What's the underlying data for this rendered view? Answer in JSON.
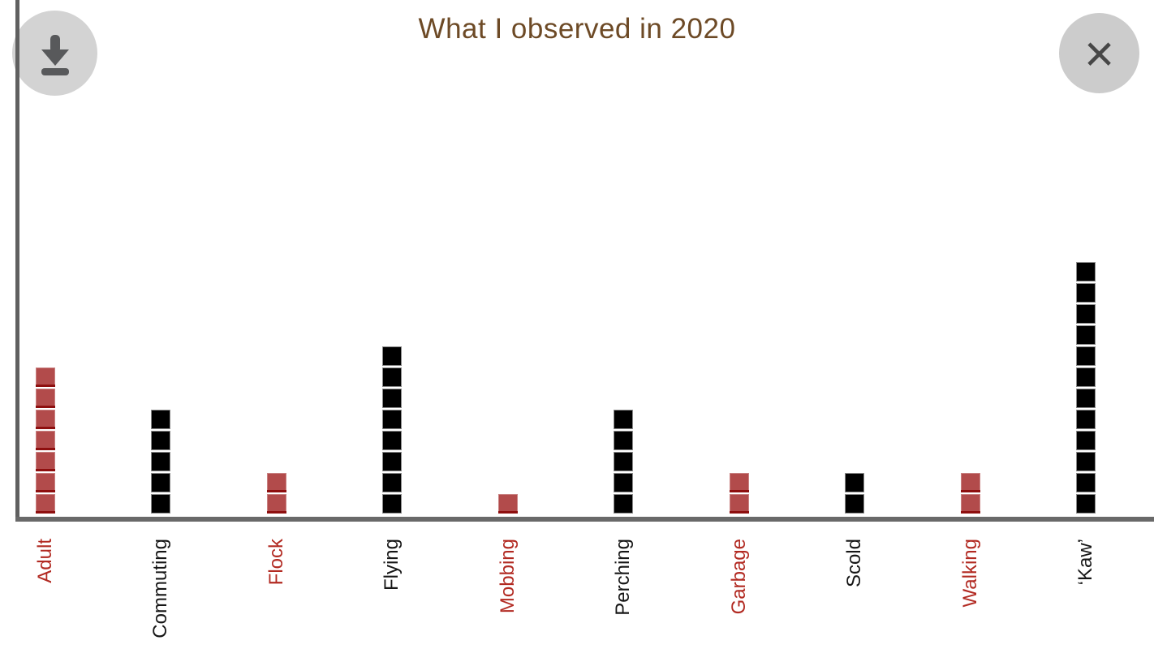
{
  "header": {
    "title": "What I observed in 2020",
    "title_color": "#6d4a26"
  },
  "buttons": {
    "download_icon": "download-icon",
    "close_icon": "close-icon",
    "close_glyph": "×"
  },
  "chart_data": {
    "type": "bar",
    "variant": "unit-square-pictograph (1 square = 1 observation)",
    "title": "What I observed in 2020",
    "xlabel": "",
    "ylabel": "",
    "grid": false,
    "legend": "none",
    "categories": [
      "Adult",
      "Commuting",
      "Flock",
      "Flying",
      "Mobbing",
      "Perching",
      "Garbage",
      "Scold",
      "Walking",
      "‘Kaw’"
    ],
    "values": [
      7,
      5,
      2,
      8,
      1,
      5,
      2,
      2,
      2,
      12
    ],
    "colors": [
      "red",
      "black",
      "red",
      "black",
      "red",
      "black",
      "red",
      "black",
      "red",
      "black"
    ],
    "color_hex": {
      "red": "#b24b4b",
      "black": "#000000"
    },
    "label_color_hex": {
      "red": "#b22a22",
      "black": "#161616"
    },
    "axis_color": "#666666",
    "ylim": [
      0,
      12
    ]
  }
}
